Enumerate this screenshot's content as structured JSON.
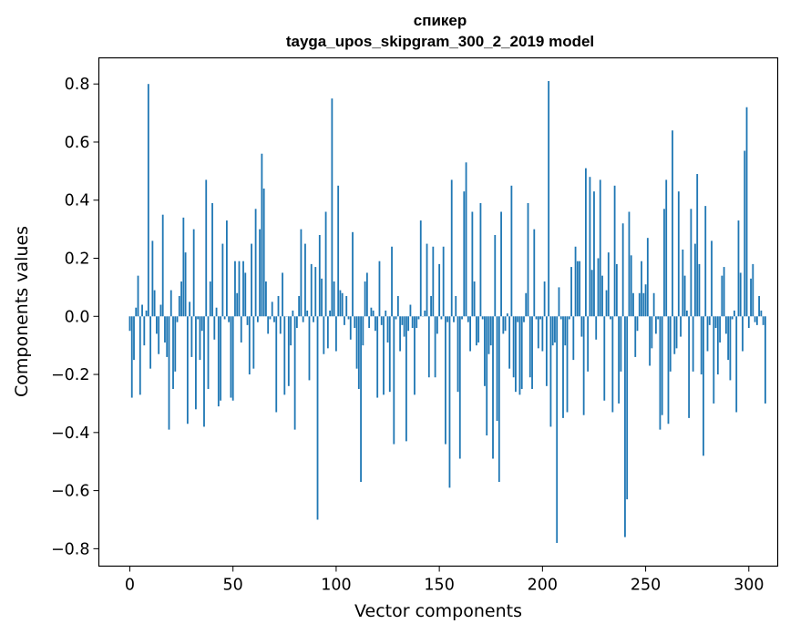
{
  "chart_data": {
    "type": "bar",
    "title": "спикер",
    "subtitle": "tayga_upos_skipgram_300_2_2019 model",
    "xlabel": "Vector components",
    "ylabel": "Components values",
    "xlim": [
      -15,
      314
    ],
    "ylim": [
      -0.86,
      0.89
    ],
    "xticks": [
      0,
      50,
      100,
      150,
      200,
      250,
      300
    ],
    "xtick_labels": [
      "0",
      "50",
      "100",
      "150",
      "200",
      "250",
      "300"
    ],
    "yticks": [
      -0.8,
      -0.6,
      -0.4,
      -0.2,
      0.0,
      0.2,
      0.4,
      0.6,
      0.8
    ],
    "ytick_labels": [
      "−0.8",
      "−0.6",
      "−0.4",
      "−0.2",
      "0.0",
      "0.2",
      "0.4",
      "0.6",
      "0.8"
    ],
    "bar_color": "#1f77b4",
    "grid": false,
    "values": [
      -0.05,
      -0.28,
      -0.15,
      0.03,
      0.14,
      -0.27,
      0.04,
      -0.1,
      0.02,
      0.8,
      -0.18,
      0.26,
      0.09,
      -0.06,
      -0.13,
      0.04,
      0.35,
      -0.09,
      -0.14,
      -0.39,
      0.09,
      -0.25,
      -0.19,
      -0.02,
      0.07,
      0.12,
      0.34,
      0.22,
      -0.37,
      0.05,
      -0.14,
      0.3,
      -0.32,
      -0.01,
      -0.15,
      -0.05,
      -0.38,
      0.47,
      -0.25,
      0.12,
      0.39,
      -0.08,
      0.03,
      -0.31,
      -0.29,
      0.25,
      -0.01,
      0.33,
      -0.02,
      -0.28,
      -0.29,
      0.19,
      0.08,
      0.19,
      -0.09,
      0.19,
      0.15,
      -0.03,
      -0.2,
      0.25,
      -0.18,
      0.37,
      -0.02,
      0.3,
      0.56,
      0.44,
      0.12,
      -0.06,
      -0.01,
      0.05,
      -0.02,
      -0.33,
      0.07,
      -0.06,
      0.15,
      -0.27,
      0.0,
      -0.24,
      -0.1,
      0.02,
      -0.39,
      -0.04,
      0.07,
      0.3,
      -0.02,
      0.25,
      0.02,
      -0.22,
      0.18,
      -0.02,
      0.17,
      -0.7,
      0.28,
      0.13,
      -0.13,
      0.36,
      -0.11,
      0.02,
      0.75,
      0.12,
      -0.12,
      0.45,
      0.09,
      0.08,
      -0.03,
      0.07,
      -0.01,
      -0.08,
      0.29,
      -0.04,
      -0.18,
      -0.25,
      -0.57,
      -0.1,
      0.12,
      0.15,
      -0.04,
      0.03,
      0.02,
      -0.05,
      -0.28,
      0.19,
      -0.03,
      -0.27,
      0.02,
      -0.09,
      -0.26,
      0.24,
      -0.44,
      -0.01,
      0.07,
      -0.12,
      -0.03,
      -0.07,
      -0.43,
      -0.05,
      0.04,
      -0.04,
      -0.27,
      -0.04,
      -0.01,
      0.33,
      0.0,
      0.02,
      0.25,
      -0.21,
      0.07,
      0.24,
      -0.21,
      -0.06,
      0.18,
      -0.01,
      0.24,
      -0.44,
      -0.02,
      -0.59,
      0.47,
      -0.02,
      0.07,
      -0.26,
      -0.49,
      -0.01,
      0.43,
      0.53,
      -0.02,
      -0.12,
      0.36,
      0.12,
      -0.1,
      -0.09,
      0.39,
      -0.01,
      -0.24,
      -0.41,
      -0.13,
      -0.1,
      -0.49,
      0.28,
      -0.36,
      -0.57,
      0.36,
      -0.06,
      -0.05,
      0.01,
      -0.18,
      0.45,
      -0.21,
      -0.26,
      -0.02,
      -0.27,
      -0.25,
      -0.02,
      0.08,
      0.39,
      -0.21,
      -0.25,
      0.3,
      -0.01,
      -0.11,
      -0.01,
      -0.12,
      0.12,
      -0.24,
      0.81,
      -0.38,
      -0.1,
      -0.09,
      -0.78,
      0.1,
      -0.01,
      -0.35,
      -0.1,
      -0.33,
      -0.01,
      0.17,
      -0.15,
      0.24,
      0.19,
      0.19,
      -0.07,
      -0.34,
      0.51,
      -0.19,
      0.48,
      0.16,
      0.43,
      -0.08,
      0.2,
      0.47,
      0.14,
      -0.29,
      0.09,
      0.22,
      -0.01,
      -0.33,
      0.45,
      0.18,
      -0.3,
      -0.19,
      0.32,
      -0.76,
      -0.63,
      0.36,
      0.21,
      0.08,
      -0.14,
      -0.05,
      0.08,
      0.19,
      0.08,
      0.11,
      0.27,
      -0.17,
      -0.11,
      0.08,
      -0.06,
      -0.01,
      -0.39,
      -0.34,
      0.37,
      0.47,
      -0.37,
      -0.19,
      0.64,
      -0.13,
      -0.11,
      0.43,
      -0.07,
      0.23,
      0.14,
      0.02,
      -0.35,
      0.37,
      -0.19,
      0.25,
      0.49,
      0.18,
      -0.2,
      -0.48,
      0.38,
      -0.12,
      -0.03,
      0.26,
      -0.3,
      -0.04,
      -0.2,
      -0.09,
      0.14,
      0.17,
      -0.06,
      -0.15,
      -0.22,
      -0.01,
      0.02,
      -0.33,
      0.33,
      0.15,
      -0.12,
      0.57,
      0.72,
      -0.04,
      0.13,
      0.18,
      -0.02,
      -0.03,
      0.07,
      0.02,
      -0.03,
      -0.3
    ]
  }
}
